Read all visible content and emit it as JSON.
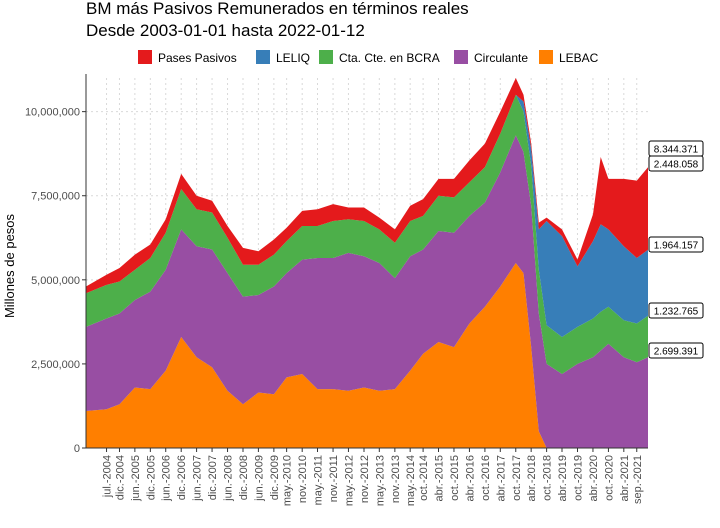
{
  "chart_data": {
    "type": "area",
    "stacked": true,
    "title": "BM más Pasivos Remunerados en términos reales",
    "subtitle": "Desde 2003-01-01 hasta 2022-01-12",
    "ylabel": "Millones de pesos",
    "xlabel": "",
    "ylim": [
      0,
      11000000
    ],
    "xlim": [
      "2003-11-01",
      "2022-01-12"
    ],
    "legend_position": "top",
    "grid": true,
    "y_ticks": [
      {
        "value": 0,
        "label": "0"
      },
      {
        "value": 2500000,
        "label": "2,500,000"
      },
      {
        "value": 5000000,
        "label": "5,000,000"
      },
      {
        "value": 7500000,
        "label": "7,500,000"
      },
      {
        "value": 10000000,
        "label": "10,000,000"
      }
    ],
    "x_ticks": [
      {
        "date": "2004-07-01",
        "label": "jul.-2004"
      },
      {
        "date": "2004-12-01",
        "label": "dic.-2004"
      },
      {
        "date": "2005-06-01",
        "label": "jun.-2005"
      },
      {
        "date": "2005-12-01",
        "label": "dic.-2005"
      },
      {
        "date": "2006-06-01",
        "label": "jun.-2006"
      },
      {
        "date": "2006-12-01",
        "label": "dic.-2006"
      },
      {
        "date": "2007-06-01",
        "label": "jun.-2007"
      },
      {
        "date": "2007-12-01",
        "label": "dic.-2007"
      },
      {
        "date": "2008-06-01",
        "label": "jun.-2008"
      },
      {
        "date": "2008-12-01",
        "label": "dic.-2008"
      },
      {
        "date": "2009-06-01",
        "label": "jun.-2009"
      },
      {
        "date": "2009-12-01",
        "label": "dic.-2009"
      },
      {
        "date": "2010-05-01",
        "label": "may.-2010"
      },
      {
        "date": "2010-11-01",
        "label": "nov.-2010"
      },
      {
        "date": "2011-05-01",
        "label": "may.-2011"
      },
      {
        "date": "2011-11-01",
        "label": "nov.-2011"
      },
      {
        "date": "2012-05-01",
        "label": "may.-2012"
      },
      {
        "date": "2012-11-01",
        "label": "nov.-2012"
      },
      {
        "date": "2013-05-01",
        "label": "may.-2013"
      },
      {
        "date": "2013-11-01",
        "label": "nov.-2013"
      },
      {
        "date": "2014-05-01",
        "label": "may.-2014"
      },
      {
        "date": "2014-10-01",
        "label": "oct.-2014"
      },
      {
        "date": "2015-04-01",
        "label": "abr.-2015"
      },
      {
        "date": "2015-10-01",
        "label": "oct.-2015"
      },
      {
        "date": "2016-04-01",
        "label": "abr.-2016"
      },
      {
        "date": "2016-10-01",
        "label": "oct.-2016"
      },
      {
        "date": "2017-04-01",
        "label": "abr.-2017"
      },
      {
        "date": "2017-10-01",
        "label": "oct.-2017"
      },
      {
        "date": "2018-04-01",
        "label": "abr.-2018"
      },
      {
        "date": "2018-10-01",
        "label": "oct.-2018"
      },
      {
        "date": "2019-04-01",
        "label": "abr.-2019"
      },
      {
        "date": "2019-10-01",
        "label": "oct.-2019"
      },
      {
        "date": "2020-04-01",
        "label": "abr.-2020"
      },
      {
        "date": "2020-10-01",
        "label": "oct.-2020"
      },
      {
        "date": "2021-04-01",
        "label": "abr.-2021"
      },
      {
        "date": "2021-09-01",
        "label": "sep.-2021"
      }
    ],
    "x": [
      "2003-11-01",
      "2004-07-01",
      "2004-12-01",
      "2005-06-01",
      "2005-12-01",
      "2006-06-01",
      "2006-12-01",
      "2007-06-01",
      "2007-12-01",
      "2008-06-01",
      "2008-12-01",
      "2009-06-01",
      "2009-12-01",
      "2010-05-01",
      "2010-11-01",
      "2011-05-01",
      "2011-11-01",
      "2012-05-01",
      "2012-11-01",
      "2013-05-01",
      "2013-11-01",
      "2014-05-01",
      "2014-10-01",
      "2015-04-01",
      "2015-10-01",
      "2016-04-01",
      "2016-10-01",
      "2017-04-01",
      "2017-10-01",
      "2018-01-01",
      "2018-04-01",
      "2018-07-01",
      "2018-10-01",
      "2019-04-01",
      "2019-10-01",
      "2020-04-01",
      "2020-07-01",
      "2020-10-01",
      "2021-04-01",
      "2021-09-01",
      "2022-01-12"
    ],
    "series": [
      {
        "name": "LEBAC",
        "color": "#FF7F00",
        "values": [
          1100000,
          1150000,
          1300000,
          1800000,
          1750000,
          2300000,
          3300000,
          2700000,
          2400000,
          1700000,
          1300000,
          1650000,
          1600000,
          2100000,
          2200000,
          1750000,
          1750000,
          1700000,
          1800000,
          1700000,
          1750000,
          2300000,
          2800000,
          3150000,
          3000000,
          3700000,
          4200000,
          4800000,
          5500000,
          5200000,
          3000000,
          500000,
          0,
          0,
          0,
          0,
          0,
          0,
          0,
          0,
          0
        ]
      },
      {
        "name": "Circulante",
        "color": "#984EA3",
        "values": [
          2500000,
          2700000,
          2700000,
          2600000,
          2900000,
          3000000,
          3200000,
          3300000,
          3500000,
          3500000,
          3200000,
          2900000,
          3200000,
          3100000,
          3400000,
          3900000,
          3900000,
          4100000,
          3900000,
          3800000,
          3300000,
          3400000,
          3100000,
          3300000,
          3400000,
          3200000,
          3100000,
          3400000,
          3800000,
          3600000,
          4200000,
          3500000,
          2500000,
          2200000,
          2500000,
          2700000,
          2900000,
          3100000,
          2700000,
          2550000,
          2699391
        ]
      },
      {
        "name": "Cta. Cte. en BCRA",
        "color": "#4DAF4A",
        "values": [
          1000000,
          1000000,
          950000,
          900000,
          1000000,
          1100000,
          1200000,
          1100000,
          1100000,
          1050000,
          950000,
          900000,
          950000,
          950000,
          1000000,
          950000,
          1100000,
          1000000,
          1050000,
          1000000,
          1050000,
          1050000,
          1000000,
          1050000,
          1050000,
          1000000,
          1050000,
          1150000,
          1200000,
          1200000,
          1200000,
          1300000,
          1150000,
          1100000,
          1100000,
          1150000,
          1150000,
          1100000,
          1100000,
          1150000,
          1232765
        ]
      },
      {
        "name": "LELIQ",
        "color": "#377EB8",
        "values": [
          0,
          0,
          0,
          0,
          0,
          0,
          0,
          0,
          0,
          0,
          0,
          0,
          0,
          0,
          0,
          0,
          0,
          0,
          0,
          0,
          0,
          0,
          0,
          0,
          0,
          0,
          0,
          0,
          0,
          300000,
          500000,
          1200000,
          3100000,
          3000000,
          1800000,
          2300000,
          2600000,
          2300000,
          2200000,
          1950000,
          1964157
        ]
      },
      {
        "name": "Pases Pasivos",
        "color": "#E41A1C",
        "values": [
          200000,
          300000,
          400000,
          450000,
          400000,
          400000,
          450000,
          400000,
          350000,
          350000,
          500000,
          400000,
          450000,
          400000,
          450000,
          500000,
          500000,
          350000,
          400000,
          350000,
          400000,
          450000,
          500000,
          500000,
          550000,
          650000,
          700000,
          650000,
          500000,
          200000,
          150000,
          200000,
          100000,
          200000,
          200000,
          800000,
          2000000,
          1500000,
          2000000,
          2300000,
          2448058
        ]
      }
    ],
    "end_labels": [
      {
        "series": "Total",
        "value": 8344371,
        "label": "8.344.371"
      },
      {
        "series": "Pases Pasivos",
        "value": 2448058,
        "label": "2.448.058"
      },
      {
        "series": "LELIQ",
        "value": 1964157,
        "label": "1.964.157"
      },
      {
        "series": "Cta. Cte. en BCRA",
        "value": 1232765,
        "label": "1.232.765"
      },
      {
        "series": "Circulante",
        "value": 2699391,
        "label": "2.699.391"
      }
    ],
    "legend": [
      {
        "name": "Pases Pasivos",
        "color": "#E41A1C"
      },
      {
        "name": "LELIQ",
        "color": "#377EB8"
      },
      {
        "name": "Cta. Cte. en BCRA",
        "color": "#4DAF4A"
      },
      {
        "name": "Circulante",
        "color": "#984EA3"
      },
      {
        "name": "LEBAC",
        "color": "#FF7F00"
      }
    ]
  }
}
